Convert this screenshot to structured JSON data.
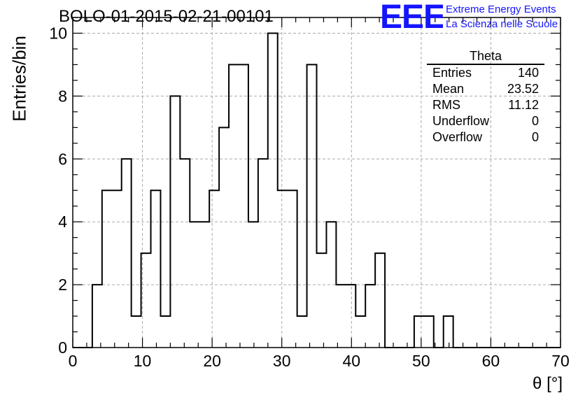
{
  "title": "BOLO-01-2015-02-21-00101",
  "logo": {
    "mark": "EEE",
    "line1": "Extreme Energy Events",
    "line2": "La Scienza nelle Scuole",
    "color": "#1515ff"
  },
  "stats": {
    "title": "Theta",
    "rows": [
      {
        "label": "Entries",
        "value": "140"
      },
      {
        "label": "Mean",
        "value": "23.52"
      },
      {
        "label": "RMS",
        "value": "11.12"
      },
      {
        "label": "Underflow",
        "value": "0"
      },
      {
        "label": "Overflow",
        "value": "0"
      }
    ]
  },
  "chart_data": {
    "type": "histogram",
    "title": "BOLO-01-2015-02-21-00101",
    "xlabel": "θ [°]",
    "ylabel": "Entries/bin",
    "xlim": [
      0,
      70
    ],
    "ylim": [
      0,
      10.5
    ],
    "xticks": [
      0,
      10,
      20,
      30,
      40,
      50,
      60,
      70
    ],
    "yticks": [
      0,
      2,
      4,
      6,
      8,
      10
    ],
    "grid": true,
    "bin_edges": [
      0,
      1.4,
      2.8,
      4.2,
      5.6,
      7,
      8.4,
      9.8,
      11.2,
      12.6,
      14,
      15.4,
      16.8,
      18.2,
      19.6,
      21,
      22.4,
      23.8,
      25.2,
      26.6,
      28,
      29.4,
      30.8,
      32.2,
      33.6,
      35,
      36.4,
      37.8,
      39.2,
      40.6,
      42,
      43.4,
      44.8,
      46.2,
      47.6,
      49,
      50.4,
      51.8,
      53.2,
      54.6,
      56,
      57.4,
      58.8,
      60.2,
      61.6,
      63,
      64.4,
      65.8,
      67.2,
      68.6,
      70
    ],
    "counts": [
      0,
      0,
      2,
      5,
      5,
      6,
      1,
      3,
      5,
      1,
      8,
      6,
      4,
      4,
      5,
      7,
      9,
      9,
      4,
      6,
      10,
      5,
      5,
      1,
      9,
      3,
      4,
      2,
      2,
      1,
      2,
      3,
      0,
      0,
      0,
      1,
      1,
      0,
      1,
      0,
      0,
      0,
      0,
      0,
      0,
      0,
      0,
      0,
      0,
      0
    ],
    "line_color": "#000000"
  }
}
